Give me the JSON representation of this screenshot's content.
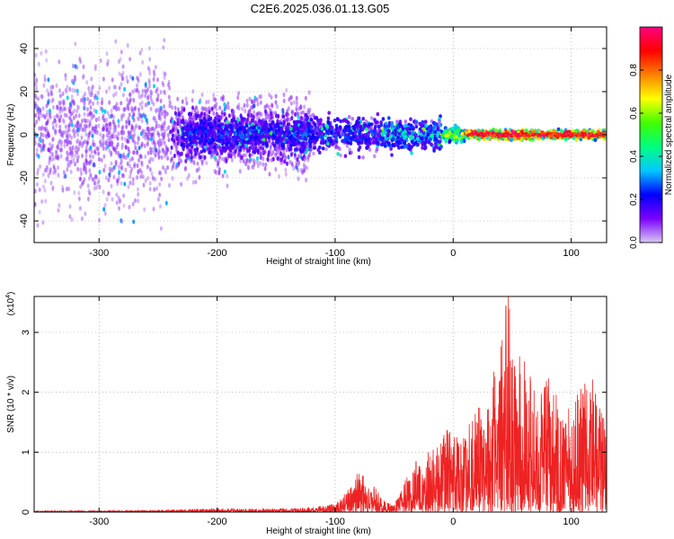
{
  "chart_data": [
    {
      "type": "heatmap",
      "title": "C2E6.2025.036.01.13.G05",
      "xlabel": "Height of straight line (km)",
      "ylabel": "Frequency (Hz)",
      "xlim": [
        -355,
        130
      ],
      "ylim": [
        -50,
        50
      ],
      "xticks": [
        -300,
        -200,
        -100,
        0,
        100
      ],
      "yticks": [
        -40,
        -20,
        0,
        20,
        40
      ],
      "colorbar": {
        "label": "Normalized spectral amplitude",
        "range": [
          0,
          1
        ],
        "ticks": [
          0.0,
          0.2,
          0.4,
          0.6,
          0.8
        ],
        "tick_labels": [
          "0.0",
          "0.2",
          "0.4",
          "0.6",
          "0.8"
        ],
        "colormap": [
          "#d8c8f0",
          "#7a00ff",
          "#0000ff",
          "#00c8ff",
          "#00ff80",
          "#40ff00",
          "#ffff00",
          "#ff8000",
          "#ff0000",
          "#ff0080"
        ]
      },
      "bands": [
        {
          "x_from": -355,
          "x_to": -240,
          "spread_hz": 50,
          "typical_amplitude": 0.08
        },
        {
          "x_from": -240,
          "x_to": -120,
          "spread_hz": 25,
          "typical_amplitude": 0.12
        },
        {
          "x_from": -230,
          "x_to": -60,
          "spread_hz": 12,
          "typical_amplitude": 0.2
        },
        {
          "x_from": -60,
          "x_to": -10,
          "spread_hz": 10,
          "typical_amplitude": 0.3
        },
        {
          "x_from": -10,
          "x_to": 10,
          "spread_hz": 5,
          "typical_amplitude": 0.5
        },
        {
          "x_from": 10,
          "x_to": 130,
          "spread_hz": 3,
          "typical_amplitude": 0.85
        }
      ],
      "grid": true
    },
    {
      "type": "line",
      "xlabel": "Height of straight line (km)",
      "ylabel": "SNR (10 * v/v)",
      "multiplier": "(x10",
      "multiplier_exp": "4",
      "multiplier_close": ")",
      "xlim": [
        -355,
        130
      ],
      "ylim": [
        0,
        3.6
      ],
      "xticks": [
        -300,
        -200,
        -100,
        0,
        100
      ],
      "yticks": [
        0,
        1,
        2,
        3
      ],
      "grid": true,
      "series": [
        {
          "color": "#ee2222",
          "x": [
            -355,
            -300,
            -250,
            -200,
            -150,
            -120,
            -100,
            -90,
            -80,
            -70,
            -60,
            -50,
            -40,
            -30,
            -20,
            -10,
            0,
            10,
            20,
            30,
            40,
            45,
            50,
            60,
            70,
            80,
            90,
            100,
            110,
            120,
            130
          ],
          "y": [
            0.02,
            0.02,
            0.03,
            0.05,
            0.05,
            0.07,
            0.12,
            0.3,
            0.6,
            0.5,
            0.2,
            0.1,
            0.5,
            0.8,
            0.9,
            1.1,
            1.3,
            1.2,
            1.5,
            1.9,
            2.5,
            3.5,
            2.8,
            2.2,
            1.8,
            2.0,
            1.6,
            1.5,
            1.9,
            2.0,
            1.3
          ]
        }
      ]
    }
  ]
}
